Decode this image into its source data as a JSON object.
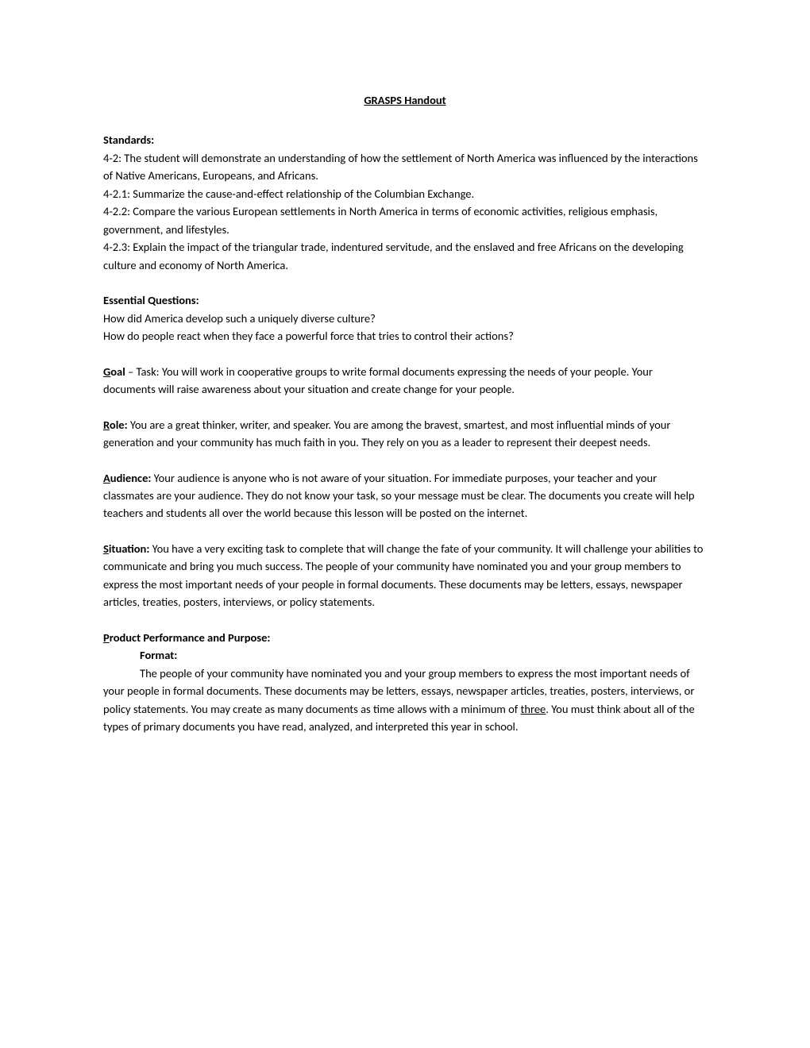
{
  "title": "GRASPS Handout",
  "standards": {
    "label": "Standards:",
    "s1": "4-2: The student will demonstrate an understanding of how the settlement of North America was influenced by the interactions of Native Americans, Europeans, and Africans.",
    "s2": "4-2.1: Summarize the cause-and-effect relationship of the Columbian Exchange.",
    "s3": "4-2.2: Compare the various European settlements in North America in terms of economic activities, religious emphasis, government, and lifestyles.",
    "s4": "4-2.3: Explain the impact of the triangular trade, indentured servitude, and the enslaved and free Africans on the developing culture and economy of North America."
  },
  "eq": {
    "label": "Essential Questions:",
    "q1": "How did America develop such a uniquely diverse culture?",
    "q2": "How do people react when they face a powerful force that tries to control their actions?"
  },
  "goal": {
    "first": "G",
    "rest": "oal",
    "sep": " – Task: ",
    "body": "You will work in cooperative groups to write formal documents expressing the needs of your people.  Your documents will raise awareness about your situation and create change for your people."
  },
  "role": {
    "first": "R",
    "rest": "ole:",
    "body": " You are a great thinker, writer, and speaker.  You are among the bravest, smartest, and most influential minds of your generation and your community has much faith in you.  They rely on you as a leader to represent their deepest needs."
  },
  "audience": {
    "first": "A",
    "rest": "udience:",
    "body": " Your audience is anyone who is not aware of your situation.  For immediate purposes, your teacher and your classmates are your audience.  They do not know your task, so your message must be clear.  The documents you create will help teachers and students all over the world because this lesson will be posted on the internet."
  },
  "situation": {
    "first": "S",
    "rest": "ituation:",
    "body": " You have a very exciting task to complete that will change the fate of your community.  It will challenge your abilities to communicate and bring you much success.  The people of your community have nominated you and your group members to express the most important needs of your people in formal documents.  These documents may be letters, essays, newspaper articles, treaties, posters, interviews, or policy statements."
  },
  "product": {
    "first": "P",
    "rest": "roduct Performance and Purpose:",
    "format_label": "Format:",
    "body_pre": "The people of your community have nominated you and your group members to express the most important needs of your people in formal documents.  These documents may be letters, essays, newspaper articles, treaties, posters, interviews, or policy statements.  You may create as many documents as time allows with a minimum of ",
    "underlined": "three",
    "body_post": ".  You must think about all of the types of primary documents you have read, analyzed, and interpreted this year in school."
  }
}
